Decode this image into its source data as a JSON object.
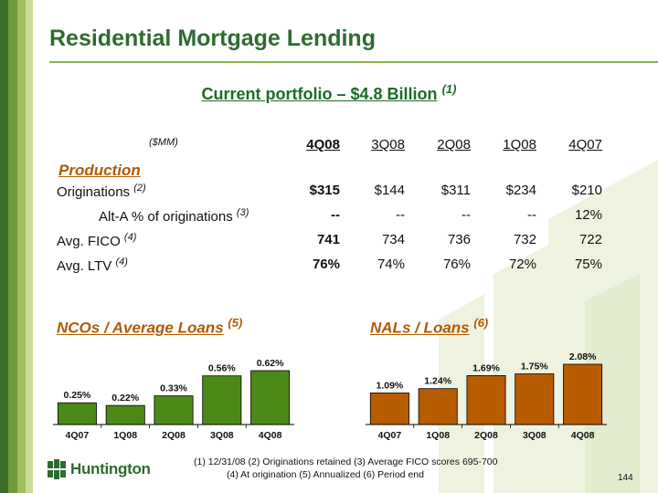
{
  "slide": {
    "title": "Residential Mortgage Lending",
    "subtitle": "Current portfolio – $4.8 Billion",
    "subtitle_note": "(1)",
    "colors": {
      "title_green": "#2e6b30",
      "accent_orange": "#b25a00",
      "bar_green": "#4c8a17",
      "bar_orange": "#b85c00"
    }
  },
  "table": {
    "units": "($MM)",
    "columns": [
      "4Q08",
      "3Q08",
      "2Q08",
      "1Q08",
      "4Q07"
    ],
    "section_label": "Production",
    "rows": [
      {
        "label": "Originations",
        "note": "(2)",
        "values": [
          "$315",
          "$144",
          "$311",
          "$234",
          "$210"
        ]
      },
      {
        "label": "Alt-A % of originations",
        "note": "(3)",
        "values": [
          "--",
          "--",
          "--",
          "--",
          "12%"
        ]
      },
      {
        "label": "Avg. FICO",
        "note": "(4)",
        "values": [
          "741",
          "734",
          "736",
          "732",
          "722"
        ]
      },
      {
        "label": "Avg. LTV",
        "note": "(4)",
        "values": [
          "76%",
          "74%",
          "76%",
          "72%",
          "75%"
        ]
      }
    ]
  },
  "chart_data": [
    {
      "type": "bar",
      "title": "NCOs / Average Loans",
      "title_note": "(5)",
      "categories": [
        "4Q07",
        "1Q08",
        "2Q08",
        "3Q08",
        "4Q08"
      ],
      "values": [
        0.25,
        0.22,
        0.33,
        0.56,
        0.62
      ],
      "labels": [
        "0.25%",
        "0.22%",
        "0.33%",
        "0.56%",
        "0.62%"
      ],
      "color": "#4c8a17",
      "ylim": [
        0,
        0.62
      ]
    },
    {
      "type": "bar",
      "title": "NALs / Loans",
      "title_note": "(6)",
      "categories": [
        "4Q07",
        "1Q08",
        "2Q08",
        "3Q08",
        "4Q08"
      ],
      "values": [
        1.09,
        1.24,
        1.69,
        1.75,
        2.08
      ],
      "labels": [
        "1.09%",
        "1.24%",
        "1.69%",
        "1.75%",
        "2.08%"
      ],
      "color": "#b85c00",
      "ylim": [
        0,
        2.08
      ]
    }
  ],
  "footer": {
    "brand": "Huntington",
    "footnote_line1": "(1)  12/31/08   (2)  Originations retained   (3)  Average FICO scores 695-700",
    "footnote_line2": "(4)  At origination   (5)  Annualized   (6) Period end",
    "page_number": "144"
  }
}
